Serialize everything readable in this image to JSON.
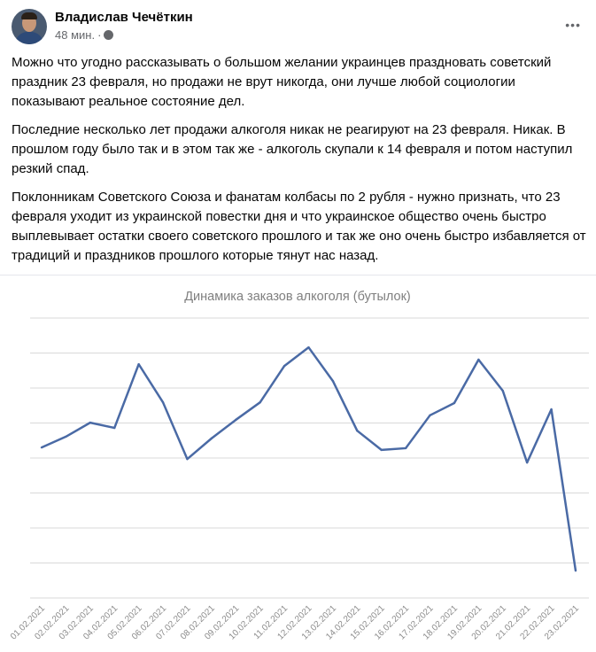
{
  "post": {
    "author": "Владислав Чечёткин",
    "time": "48 мин.",
    "separator": "·",
    "privacy_icon": "globe-icon",
    "more_icon": "more-options-icon",
    "paragraphs": [
      "Можно что угодно рассказывать о большом желании украинцев праздновать советский праздник 23 февраля, но продажи не врут никогда, они лучше любой социологии показывают реальное состояние дел.",
      "Последние несколько лет продажи алкоголя никак не реагируют на 23 февраля. Никак. В прошлом году было так и в этом так же - алкоголь скупали к 14 февраля и потом наступил резкий спад.",
      "Поклонникам Советского Союза и фанатам колбасы по 2 рубля - нужно признать, что 23 февраля уходит из украинской повестки дня и что украинское общество очень быстро выплевывает остатки своего советского прошлого и так же оно очень быстро избавляется от традиций и праздников прошлого которые тянут нас назад."
    ]
  },
  "chart_data": {
    "type": "line",
    "title": "Динамика заказов алкоголя (бутылок)",
    "categories": [
      "01.02.2021",
      "02.02.2021",
      "03.02.2021",
      "04.02.2021",
      "05.02.2021",
      "06.02.2021",
      "07.02.2021",
      "08.02.2021",
      "09.02.2021",
      "10.02.2021",
      "11.02.2021",
      "12.02.2021",
      "13.02.2021",
      "14.02.2021",
      "15.02.2021",
      "16.02.2021",
      "17.02.2021",
      "18.02.2021",
      "19.02.2021",
      "20.02.2021",
      "21.02.2021",
      "22.02.2021",
      "23.02.2021"
    ],
    "values": [
      4.3,
      4.61,
      5.01,
      4.86,
      6.68,
      5.59,
      3.97,
      4.56,
      5.09,
      5.59,
      6.63,
      7.16,
      6.2,
      4.78,
      4.23,
      4.28,
      5.22,
      5.57,
      6.81,
      5.92,
      3.87,
      5.39,
      0.78
    ],
    "ylim": [
      0,
      8
    ],
    "y_tick_labels_shown": false,
    "grid": true,
    "line_color": "#4a6aa5"
  }
}
